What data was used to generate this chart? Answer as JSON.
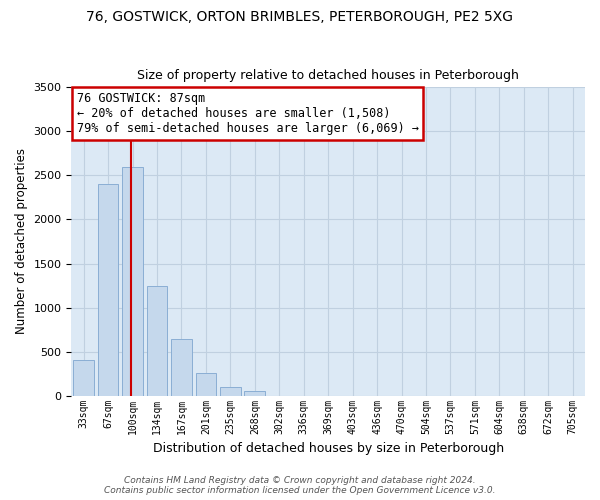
{
  "title1": "76, GOSTWICK, ORTON BRIMBLES, PETERBOROUGH, PE2 5XG",
  "title2": "Size of property relative to detached houses in Peterborough",
  "xlabel": "Distribution of detached houses by size in Peterborough",
  "ylabel": "Number of detached properties",
  "categories": [
    "33sqm",
    "67sqm",
    "100sqm",
    "134sqm",
    "167sqm",
    "201sqm",
    "235sqm",
    "268sqm",
    "302sqm",
    "336sqm",
    "369sqm",
    "403sqm",
    "436sqm",
    "470sqm",
    "504sqm",
    "537sqm",
    "571sqm",
    "604sqm",
    "638sqm",
    "672sqm",
    "705sqm"
  ],
  "values": [
    400,
    2400,
    2600,
    1250,
    640,
    260,
    100,
    50,
    0,
    0,
    0,
    0,
    0,
    0,
    0,
    0,
    0,
    0,
    0,
    0,
    0
  ],
  "bar_color": "#c5d8ec",
  "bar_edge_color": "#8aaed4",
  "vline_color": "#cc0000",
  "vline_pos": 1.93,
  "ylim": [
    0,
    3500
  ],
  "annotation_title": "76 GOSTWICK: 87sqm",
  "annotation_line1": "← 20% of detached houses are smaller (1,508)",
  "annotation_line2": "79% of semi-detached houses are larger (6,069) →",
  "annotation_box_color": "#ffffff",
  "annotation_box_edge": "#cc0000",
  "footnote1": "Contains HM Land Registry data © Crown copyright and database right 2024.",
  "footnote2": "Contains public sector information licensed under the Open Government Licence v3.0.",
  "title_fontsize": 10,
  "subtitle_fontsize": 9,
  "ax_bg_color": "#dce9f5",
  "background_color": "#ffffff",
  "grid_color": "#c0d0e0"
}
